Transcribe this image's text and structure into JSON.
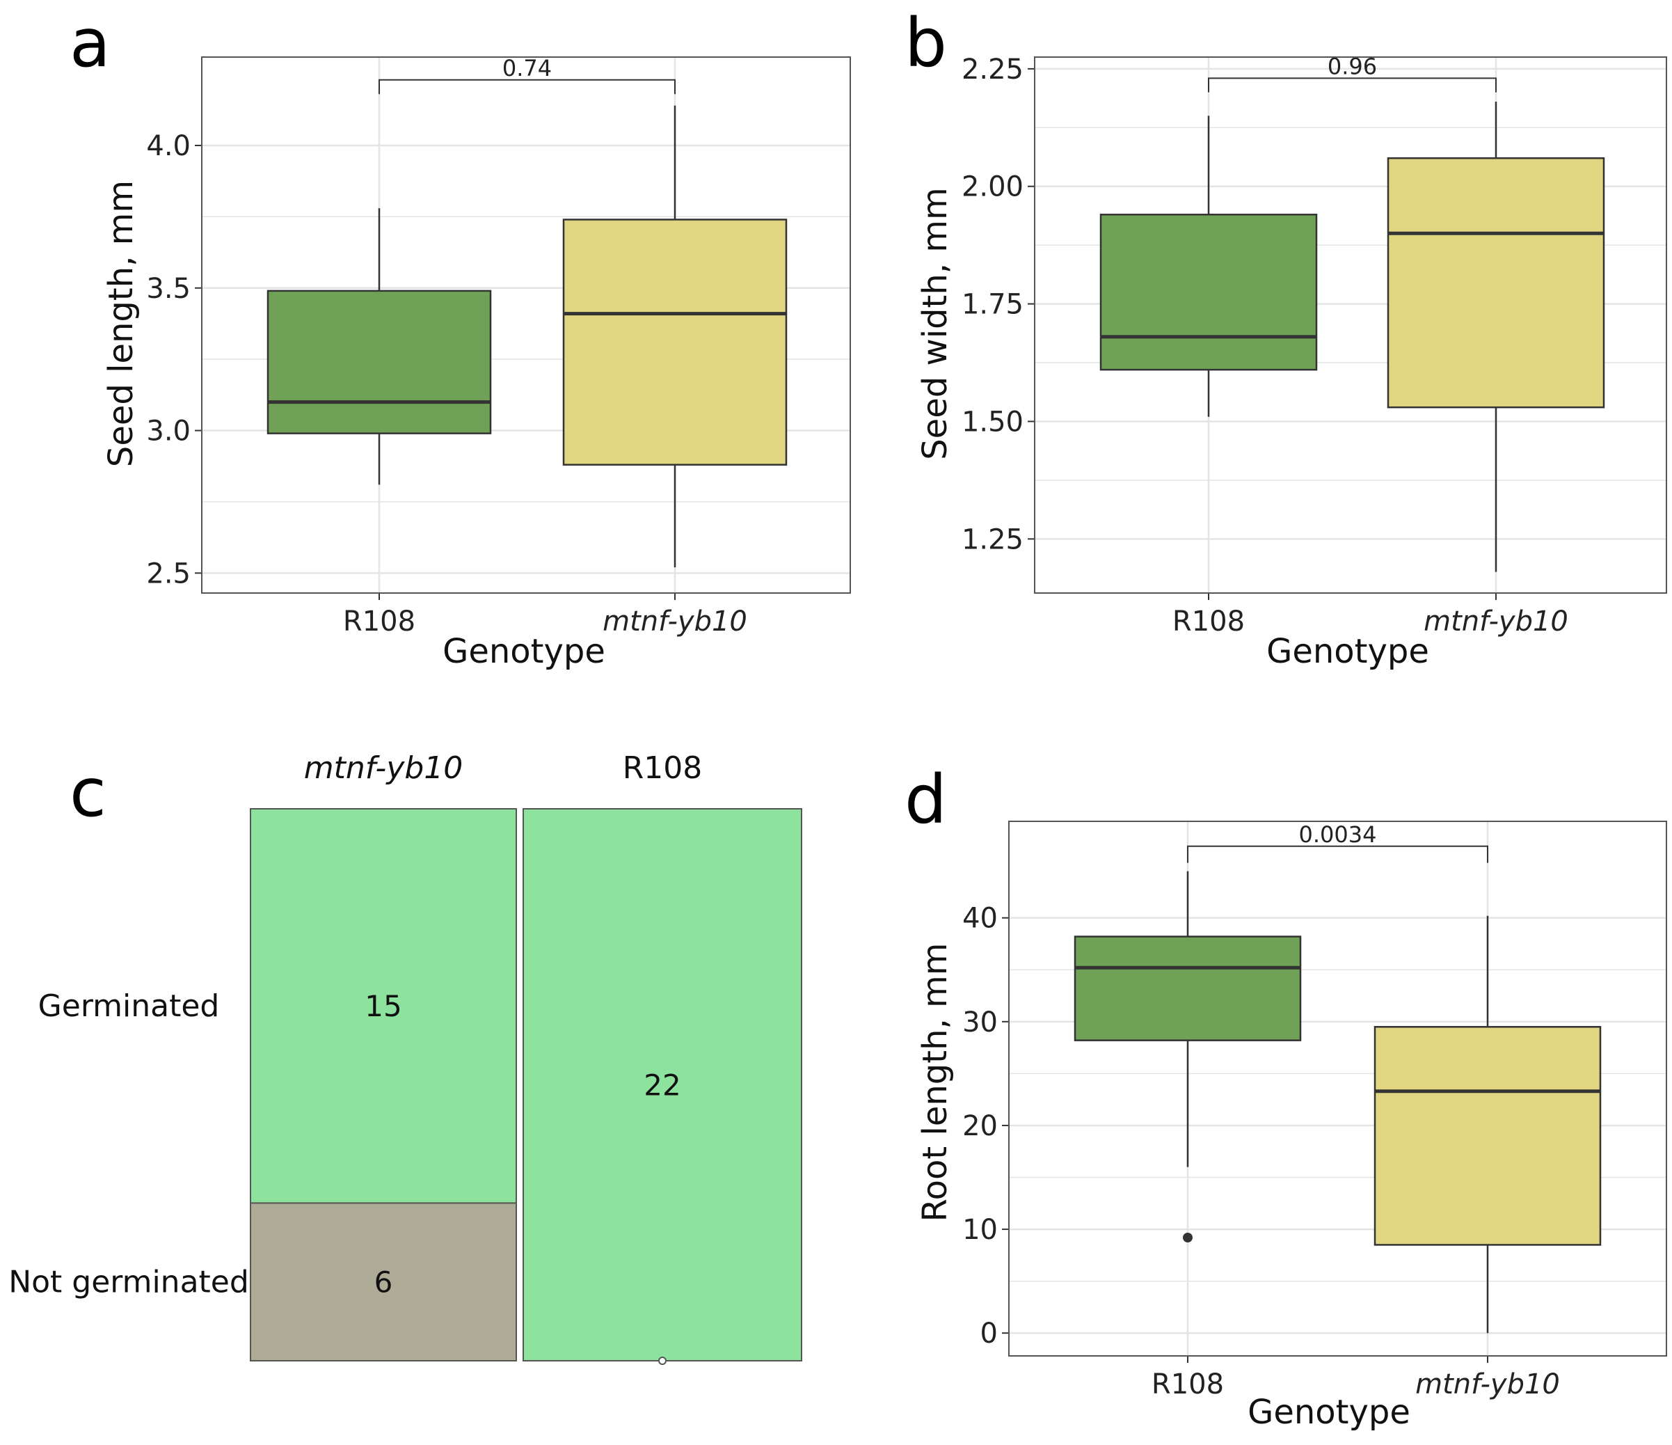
{
  "colors": {
    "r108_box": "#6fa156",
    "mutant_box": "#e0d581",
    "germinated_cell": "#8de29e",
    "not_germinated_cell": "#aeac97",
    "grid": "#e4e4e4",
    "frame": "#555555",
    "line": "#333333"
  },
  "chart_data": [
    {
      "panel": "a",
      "type": "box",
      "xlabel": "Genotype",
      "ylabel": "Seed length, mm",
      "ylim": [
        2.43,
        4.31
      ],
      "yticks": [
        2.5,
        3.0,
        3.5,
        4.0
      ],
      "ytick_labels": [
        "2.5",
        "3.0",
        "3.5",
        "4.0"
      ],
      "categories": [
        "R108",
        "mtnf-yb10"
      ],
      "italic_categories": [
        false,
        true
      ],
      "boxes": [
        {
          "name": "R108",
          "min": 2.81,
          "q1": 2.99,
          "median": 3.1,
          "q3": 3.49,
          "max": 3.78,
          "outliers": []
        },
        {
          "name": "mtnf-yb10",
          "min": 2.52,
          "q1": 2.88,
          "median": 3.41,
          "q3": 3.74,
          "max": 4.14,
          "outliers": []
        }
      ],
      "comparison": {
        "label": "0.74",
        "y": 4.23,
        "tip": 4.18
      }
    },
    {
      "panel": "b",
      "type": "box",
      "xlabel": "Genotype",
      "ylabel": "Seed width, mm",
      "ylim": [
        1.135,
        2.275
      ],
      "yticks": [
        1.25,
        1.5,
        1.75,
        2.0,
        2.25
      ],
      "ytick_labels": [
        "1.25",
        "1.50",
        "1.75",
        "2.00",
        "2.25"
      ],
      "categories": [
        "R108",
        "mtnf-yb10"
      ],
      "italic_categories": [
        false,
        true
      ],
      "boxes": [
        {
          "name": "R108",
          "min": 1.51,
          "q1": 1.61,
          "median": 1.68,
          "q3": 1.94,
          "max": 2.15,
          "outliers": []
        },
        {
          "name": "mtnf-yb10",
          "min": 1.18,
          "q1": 1.53,
          "median": 1.9,
          "q3": 2.06,
          "max": 2.18,
          "outliers": []
        }
      ],
      "comparison": {
        "label": "0.96",
        "y": 2.23,
        "tip": 2.2
      }
    },
    {
      "panel": "c",
      "type": "mosaic",
      "columns": [
        "mtnf-yb10",
        "R108"
      ],
      "italic_columns": [
        true,
        false
      ],
      "rows": [
        "Germinated",
        "Not germinated"
      ],
      "counts": [
        [
          15,
          6
        ],
        [
          22,
          0
        ]
      ],
      "count_labels": [
        [
          "15",
          "6"
        ],
        [
          "22",
          ""
        ]
      ]
    },
    {
      "panel": "d",
      "type": "box",
      "xlabel": "Genotype",
      "ylabel": "Root length, mm",
      "ylim": [
        -2.2,
        49.3
      ],
      "yticks": [
        0,
        10,
        20,
        30,
        40
      ],
      "ytick_labels": [
        "0",
        "10",
        "20",
        "30",
        "40"
      ],
      "categories": [
        "R108",
        "mtnf-yb10"
      ],
      "italic_categories": [
        false,
        true
      ],
      "boxes": [
        {
          "name": "R108",
          "min": 16.0,
          "q1": 28.2,
          "median": 35.2,
          "q3": 38.2,
          "max": 44.5,
          "outliers": [
            9.2
          ]
        },
        {
          "name": "mtnf-yb10",
          "min": 0.0,
          "q1": 8.5,
          "median": 23.3,
          "q3": 29.5,
          "max": 40.2,
          "outliers": []
        }
      ],
      "comparison": {
        "label": "0.0034",
        "y": 46.9,
        "tip": 45.3
      }
    }
  ]
}
